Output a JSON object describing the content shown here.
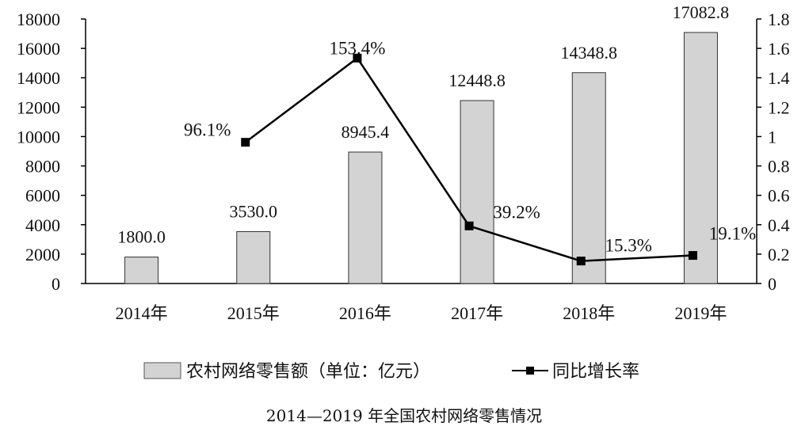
{
  "chart_data": {
    "type": "bar",
    "categories": [
      "2014年",
      "2015年",
      "2016年",
      "2017年",
      "2018年",
      "2019年"
    ],
    "series": [
      {
        "name": "农村网络零售额（单位：亿元）",
        "type": "bar",
        "axis": "left",
        "values": [
          1800.0,
          3530.0,
          8945.4,
          12448.8,
          14348.8,
          17082.8
        ],
        "labels": [
          "1800.0",
          "3530.0",
          "8945.4",
          "12448.8",
          "14348.8",
          "17082.8"
        ],
        "color": "#d3d3d3"
      },
      {
        "name": "同比增长率",
        "type": "line",
        "axis": "right",
        "values": [
          null,
          0.961,
          1.534,
          0.392,
          0.153,
          0.191
        ],
        "labels": [
          "",
          "96.1%",
          "153.4%",
          "39.2%",
          "15.3%",
          "19.1%"
        ],
        "color": "#000000"
      }
    ],
    "y_left": {
      "lim": [
        0,
        18000
      ],
      "ticks": [
        "0",
        "2000",
        "4000",
        "6000",
        "8000",
        "10000",
        "12000",
        "14000",
        "16000",
        "18000"
      ]
    },
    "y_right": {
      "lim": [
        0,
        1.8
      ],
      "ticks": [
        "0",
        "0.2",
        "0.4",
        "0.6",
        "0.8",
        "1",
        "1.2",
        "1.4",
        "1.6",
        "1.8"
      ]
    },
    "grid": false,
    "legend": "bottom",
    "caption": "2014—2019 年全国农村网络零售情况"
  }
}
